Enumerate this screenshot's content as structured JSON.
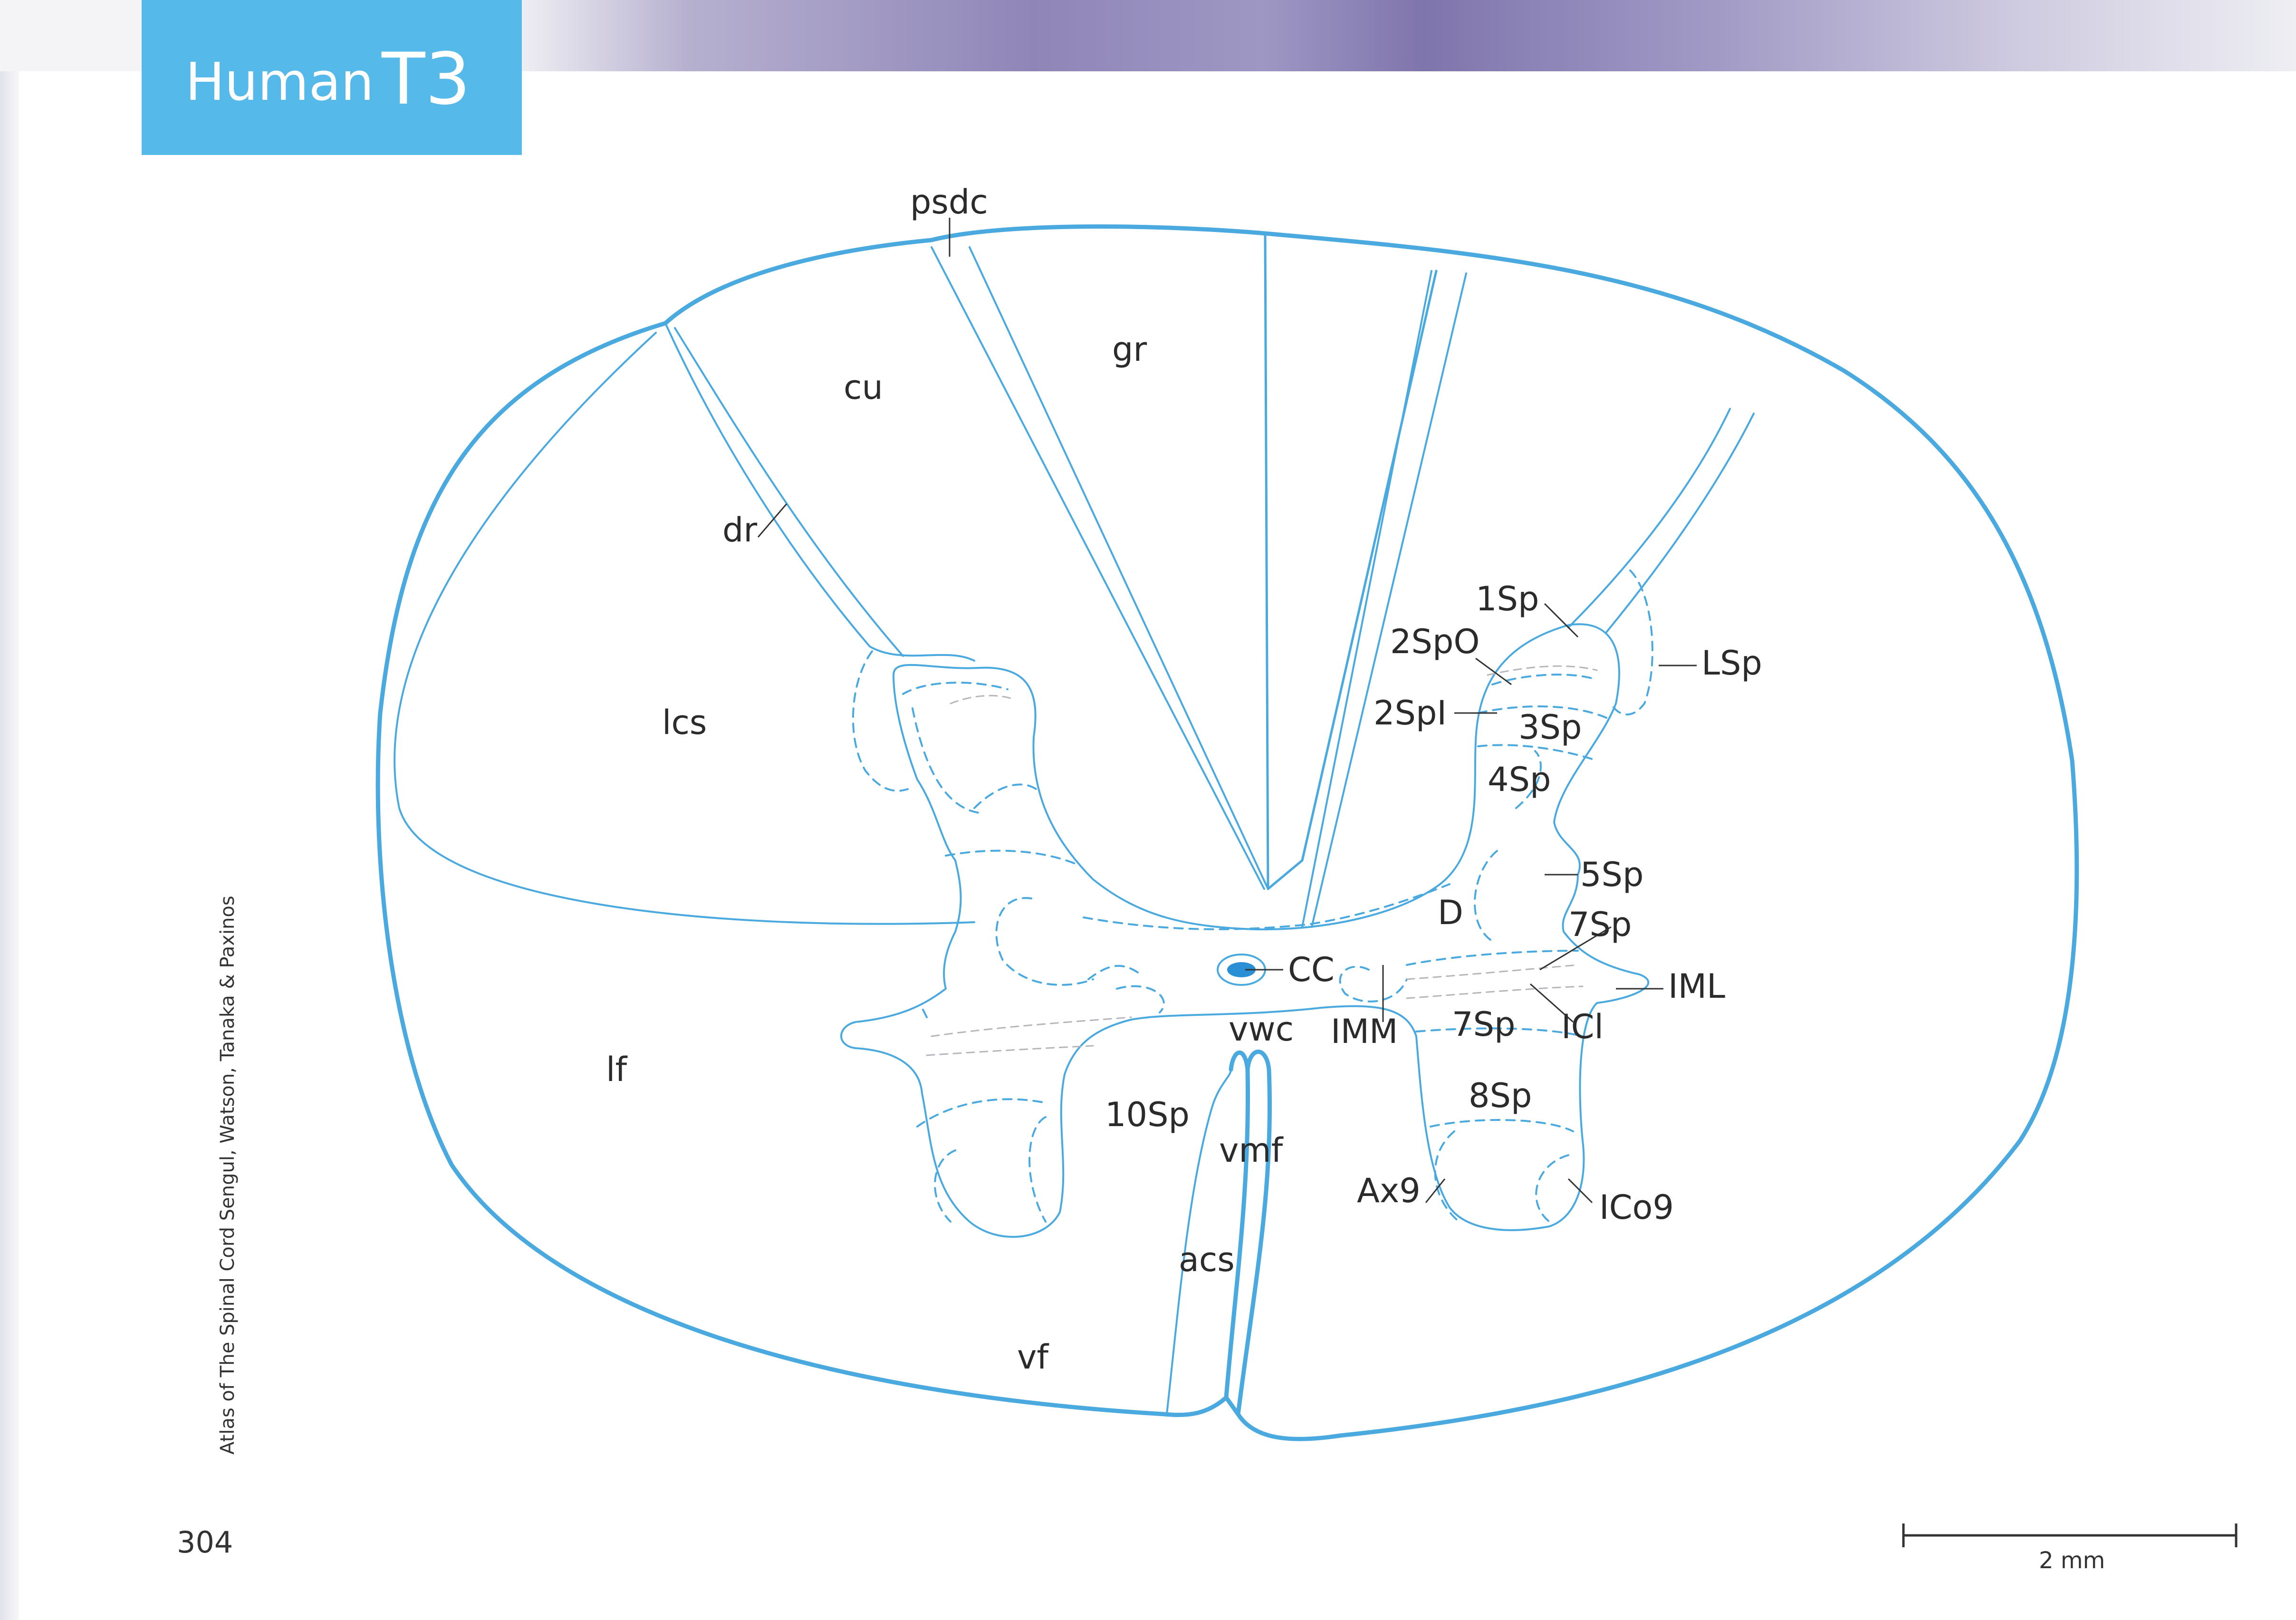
{
  "header": {
    "species": "Human",
    "level": "T3"
  },
  "sidebar": {
    "credit": "Atlas of The Spinal Cord   Sengul, Watson, Tanaka & Paxinos"
  },
  "page_number": "304",
  "scale_bar": {
    "label": "2 mm"
  },
  "colors": {
    "outline": "#4aa9de",
    "fill_cc": "#2b8fd6",
    "title_bg": "#55b9e9"
  },
  "labels": {
    "psdc": "psdc",
    "gr": "gr",
    "cu": "cu",
    "dr": "dr",
    "lcs": "lcs",
    "lf": "lf",
    "vf": "vf",
    "acs": "acs",
    "vmf": "vmf",
    "vwc": "vwc",
    "sp10": "10Sp",
    "cc": "CC",
    "imm": "IMM",
    "sp7a": "7Sp",
    "sp7b": "7Sp",
    "icl": "ICl",
    "iml": "IML",
    "sp8": "8Sp",
    "ax9": "Ax9",
    "ico9": "ICo9",
    "d": "D",
    "sp5": "5Sp",
    "sp4": "4Sp",
    "sp3": "3Sp",
    "sp2i": "2SpI",
    "sp2o": "2SpO",
    "sp1": "1Sp",
    "lsp": "LSp"
  }
}
